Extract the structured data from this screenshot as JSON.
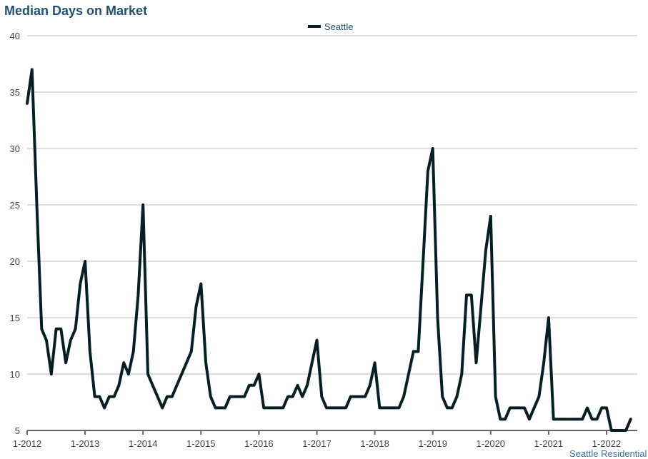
{
  "chart_data": {
    "type": "line",
    "title": "Median Days on Market",
    "xlabel": "",
    "ylabel": "",
    "ylim": [
      5,
      40
    ],
    "yticks": [
      "5",
      "10",
      "15",
      "20",
      "25",
      "30",
      "35",
      "40"
    ],
    "xtick_labels": [
      "1-2012",
      "1-2013",
      "1-2014",
      "1-2015",
      "1-2016",
      "1-2017",
      "1-2018",
      "1-2019",
      "1-2020",
      "1-2021",
      "1-2022"
    ],
    "grid": "horizontal",
    "legend_position": "top-center",
    "start": "1-2012",
    "frequency": "monthly",
    "series": [
      {
        "name": "Seattle",
        "color": "#061f22",
        "values": [
          34,
          37,
          25,
          14,
          13,
          10,
          14,
          14,
          11,
          13,
          14,
          18,
          20,
          12,
          8,
          8,
          7,
          8,
          8,
          9,
          11,
          10,
          12,
          17,
          25,
          10,
          9,
          8,
          7,
          8,
          8,
          9,
          10,
          11,
          12,
          16,
          18,
          11,
          8,
          7,
          7,
          7,
          8,
          8,
          8,
          8,
          9,
          9,
          10,
          7,
          7,
          7,
          7,
          7,
          8,
          8,
          9,
          8,
          9,
          11,
          13,
          8,
          7,
          7,
          7,
          7,
          7,
          8,
          8,
          8,
          8,
          9,
          11,
          7,
          7,
          7,
          7,
          7,
          8,
          10,
          12,
          12,
          20,
          28,
          30,
          15,
          8,
          7,
          7,
          8,
          10,
          17,
          17,
          11,
          16,
          21,
          24,
          8,
          6,
          6,
          7,
          7,
          7,
          7,
          6,
          7,
          8,
          11,
          15,
          6,
          6,
          6,
          6,
          6,
          6,
          6,
          7,
          6,
          6,
          7,
          7,
          5,
          5,
          5,
          5,
          6
        ]
      }
    ]
  },
  "source_text": "Seattle Residential"
}
